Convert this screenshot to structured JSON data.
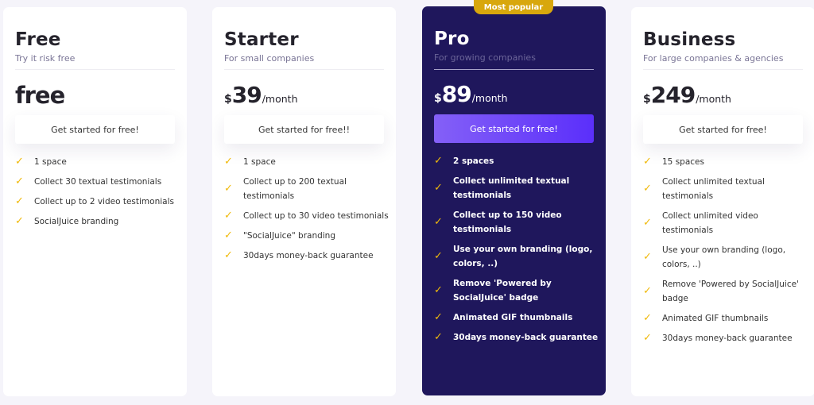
{
  "badge": "Most popular",
  "colors": {
    "accent": "#5b2ffa",
    "pro_bg": "#1f175c",
    "check": "#f0b90b",
    "badge": "#d8a70d"
  },
  "plans": [
    {
      "name": "Free",
      "subtitle": "Try it risk free",
      "price": "free",
      "currency": "",
      "period": "",
      "cta": "Get started for free!",
      "features": [
        "1 space",
        "Collect 30 textual testimonials",
        "Collect up to 2 video testimonials",
        "SocialJuice branding"
      ]
    },
    {
      "name": "Starter",
      "subtitle": "For small companies",
      "price": "39",
      "currency": "$",
      "period": "/month",
      "cta": "Get started for free!!",
      "features": [
        "1 space",
        "Collect up to 200 textual testimonials",
        "Collect up to 30 video testimonials",
        "\"SocialJuice\" branding",
        "30days money-back guarantee"
      ]
    },
    {
      "name": "Pro",
      "subtitle": "For growing companies",
      "price": "89",
      "currency": "$",
      "period": "/month",
      "cta": "Get started for free!",
      "features": [
        "2 spaces",
        "Collect unlimited textual testimonials",
        "Collect up to 150 video testimonials",
        "Use your own branding (logo, colors, ..)",
        "Remove 'Powered by SocialJuice' badge",
        "Animated GIF thumbnails",
        "30days money-back guarantee"
      ]
    },
    {
      "name": "Business",
      "subtitle": "For large companies & agencies",
      "price": "249",
      "currency": "$",
      "period": "/month",
      "cta": "Get started for free!",
      "features": [
        "15 spaces",
        "Collect unlimited textual testimonials",
        "Collect unlimited video testimonials",
        "Use your own branding (logo, colors, ..)",
        "Remove 'Powered by SocialJuice' badge",
        "Animated GIF thumbnails",
        "30days money-back guarantee"
      ]
    }
  ]
}
